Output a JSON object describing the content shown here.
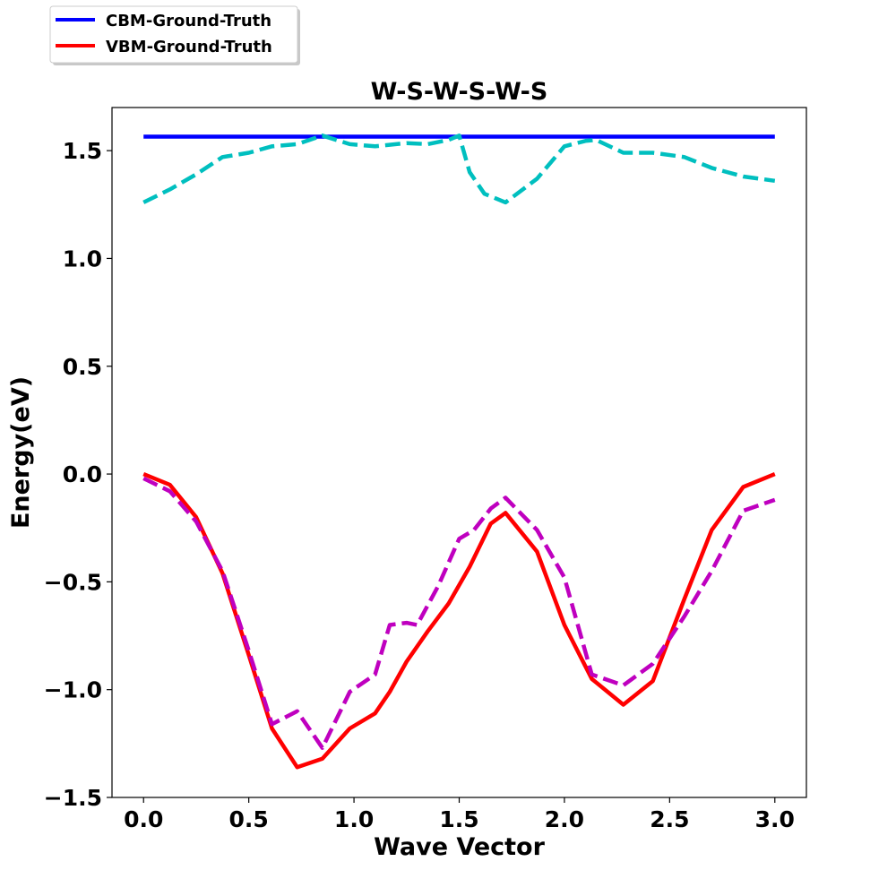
{
  "chart_data": {
    "type": "line",
    "title": "W-S-W-S-W-S",
    "xlabel": "Wave Vector",
    "ylabel": "Energy(eV)",
    "xlim": [
      -0.15,
      3.15
    ],
    "ylim": [
      -1.5,
      1.7
    ],
    "xticks": [
      0.0,
      0.5,
      1.0,
      1.5,
      2.0,
      2.5,
      3.0
    ],
    "xtick_labels": [
      "0.0",
      "0.5",
      "1.0",
      "1.5",
      "2.0",
      "2.5",
      "3.0"
    ],
    "yticks": [
      -1.5,
      -1.0,
      -0.5,
      0.0,
      0.5,
      1.0,
      1.5
    ],
    "ytick_labels": [
      "−1.5",
      "−1.0",
      "−0.5",
      "0.0",
      "0.5",
      "1.0",
      "1.5"
    ],
    "grid": false,
    "legend_position": "upper-left, outside plot",
    "series": [
      {
        "name": "CBM-Ground-Truth",
        "color": "#0000ff",
        "style": "solid",
        "x": [
          0.0,
          3.0
        ],
        "y": [
          1.565,
          1.565
        ],
        "in_legend": true
      },
      {
        "name": "VBM-Ground-Truth",
        "color": "#ff0000",
        "style": "solid",
        "x": [
          0.0,
          0.125,
          0.25,
          0.375,
          0.5,
          0.61,
          0.73,
          0.85,
          0.98,
          1.1,
          1.17,
          1.25,
          1.35,
          1.45,
          1.55,
          1.65,
          1.72,
          1.87,
          2.0,
          2.13,
          2.28,
          2.42,
          2.57,
          2.7,
          2.85,
          3.0
        ],
        "y": [
          0.0,
          -0.05,
          -0.2,
          -0.46,
          -0.84,
          -1.18,
          -1.36,
          -1.32,
          -1.18,
          -1.11,
          -1.01,
          -0.87,
          -0.73,
          -0.6,
          -0.43,
          -0.23,
          -0.18,
          -0.36,
          -0.7,
          -0.95,
          -1.07,
          -0.96,
          -0.58,
          -0.26,
          -0.06,
          0.0
        ],
        "in_legend": true
      },
      {
        "color": "#00bfbf",
        "style": "dashed",
        "x": [
          0.0,
          0.125,
          0.25,
          0.375,
          0.5,
          0.61,
          0.73,
          0.85,
          0.98,
          1.1,
          1.25,
          1.35,
          1.45,
          1.5,
          1.55,
          1.62,
          1.72,
          1.87,
          2.0,
          2.1,
          2.15,
          2.28,
          2.42,
          2.57,
          2.7,
          2.85,
          3.0
        ],
        "y": [
          1.26,
          1.32,
          1.39,
          1.47,
          1.49,
          1.52,
          1.53,
          1.57,
          1.53,
          1.52,
          1.535,
          1.53,
          1.55,
          1.57,
          1.4,
          1.3,
          1.26,
          1.37,
          1.52,
          1.545,
          1.55,
          1.49,
          1.49,
          1.47,
          1.42,
          1.38,
          1.36
        ],
        "in_legend": false
      },
      {
        "color": "#bf00bf",
        "style": "dashed",
        "x": [
          0.0,
          0.125,
          0.25,
          0.375,
          0.5,
          0.61,
          0.73,
          0.85,
          0.98,
          1.1,
          1.17,
          1.25,
          1.3,
          1.4,
          1.5,
          1.57,
          1.65,
          1.72,
          1.87,
          2.0,
          2.13,
          2.28,
          2.42,
          2.57,
          2.7,
          2.85,
          3.0
        ],
        "y": [
          -0.02,
          -0.08,
          -0.22,
          -0.45,
          -0.82,
          -1.16,
          -1.1,
          -1.27,
          -1.01,
          -0.93,
          -0.7,
          -0.69,
          -0.7,
          -0.52,
          -0.3,
          -0.26,
          -0.16,
          -0.11,
          -0.26,
          -0.48,
          -0.93,
          -0.98,
          -0.88,
          -0.66,
          -0.45,
          -0.17,
          -0.12
        ],
        "in_legend": false
      }
    ]
  }
}
